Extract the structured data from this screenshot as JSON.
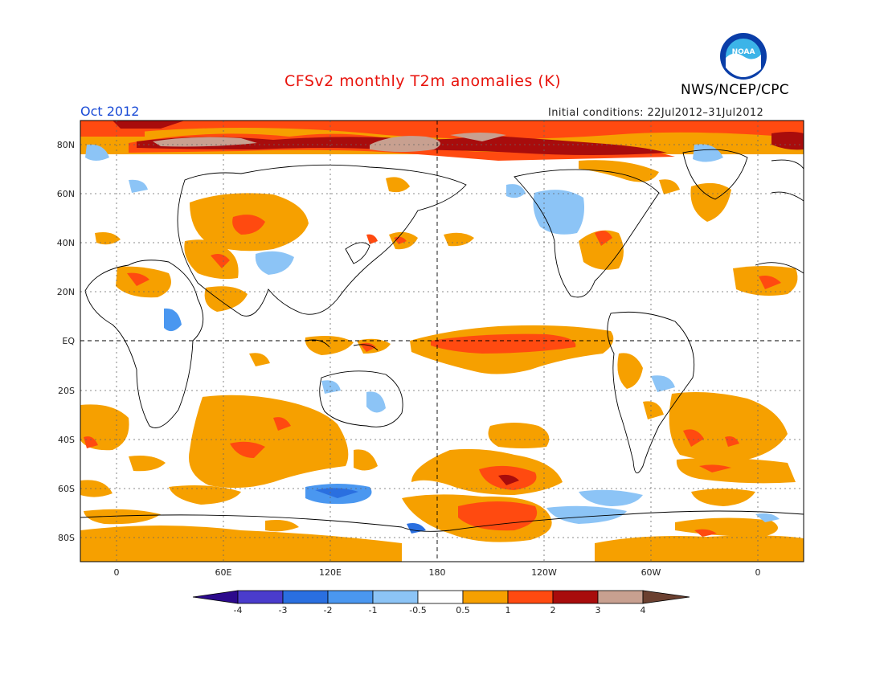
{
  "header": {
    "title": "CFSv2 monthly T2m anomalies (K)",
    "organization": "NWS/NCEP/CPC",
    "month": "Oct 2012",
    "initial_conditions": "Initial conditions: 22Jul2012–31Jul2012"
  },
  "map": {
    "type": "global anomaly map",
    "lat_labels": [
      "80N",
      "60N",
      "40N",
      "20N",
      "EQ",
      "20S",
      "40S",
      "60S",
      "80S"
    ],
    "lon_labels": [
      "0",
      "60E",
      "120E",
      "180",
      "120W",
      "60W",
      "0"
    ]
  },
  "legend": {
    "labels": [
      "-4",
      "-3",
      "-2",
      "-1",
      "-0.5",
      "0.5",
      "1",
      "2",
      "3",
      "4"
    ],
    "colors": [
      "#2c0a8c",
      "#4a3ccc",
      "#2a6fe0",
      "#4a97f0",
      "#8cc4f6",
      "#ffffff",
      "#f6a000",
      "#ff4a10",
      "#a80c0c",
      "#c8a090",
      "#6b4030"
    ]
  },
  "colors": {
    "title": "#e8130c",
    "month": "#1a4bd6",
    "warm1": "#f6a000",
    "warm2": "#ff4a10",
    "warm3": "#a80c0c",
    "warm4": "#c8a090",
    "cold1": "#8cc4f6",
    "cold2": "#4a97f0"
  },
  "icons": {
    "logo": "noaa-logo-icon"
  }
}
